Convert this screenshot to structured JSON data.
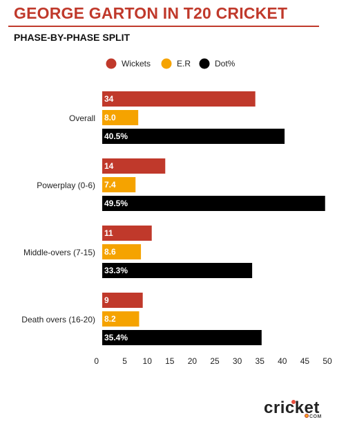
{
  "header": {
    "title": "GEORGE GARTON IN T20 CRICKET",
    "subtitle": "PHASE-BY-PHASE SPLIT"
  },
  "chart_data": {
    "type": "bar",
    "orientation": "horizontal",
    "categories": [
      "Overall",
      "Powerplay (0-6)",
      "Middle-overs (7-15)",
      "Death overs (16-20)"
    ],
    "series": [
      {
        "name": "Wickets",
        "color": "#c0392b",
        "values": [
          34,
          14,
          11,
          9
        ],
        "labels": [
          "34",
          "14",
          "11",
          "9"
        ]
      },
      {
        "name": "E.R",
        "color": "#f5a300",
        "values": [
          8.0,
          7.4,
          8.6,
          8.2
        ],
        "labels": [
          "8.0",
          "7.4",
          "8.6",
          "8.2"
        ]
      },
      {
        "name": "Dot%",
        "color": "#000000",
        "values": [
          40.5,
          49.5,
          33.3,
          35.4
        ],
        "labels": [
          "40.5%",
          "49.5%",
          "33.3%",
          "35.4%"
        ]
      }
    ],
    "xlim": [
      0,
      50
    ],
    "xticks": [
      "0",
      "5",
      "10",
      "15",
      "20",
      "25",
      "30",
      "35",
      "40",
      "45",
      "50"
    ],
    "legend": "top",
    "grid": false
  },
  "brand": {
    "logo_text": "cricket",
    "logo_suffix": "COM"
  }
}
